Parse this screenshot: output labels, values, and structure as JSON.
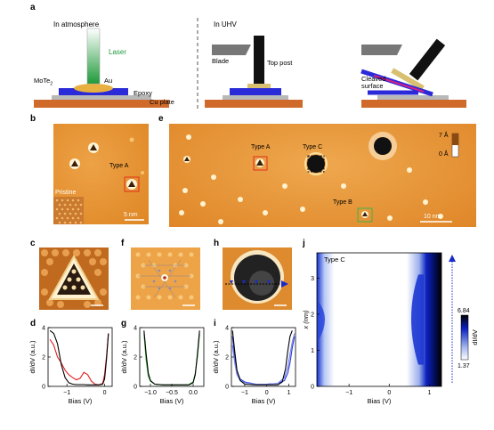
{
  "panel_letters": {
    "a": "a",
    "b": "b",
    "c": "c",
    "d": "d",
    "e": "e",
    "f": "f",
    "g": "g",
    "h": "h",
    "i": "i",
    "j": "j"
  },
  "schematic": {
    "step1_title": "In atmosphere",
    "step2_title": "In UHV",
    "laser": "Laser",
    "au": "Au",
    "mote2": "MoTe",
    "mote2_sub": "2",
    "epoxy": "Epoxy",
    "cu_plate": "Cu plate",
    "blade": "Blade",
    "top_post": "Top post",
    "cleaved_surface_1": "Cleaved",
    "cleaved_surface_2": "surface"
  },
  "panel_b": {
    "type_label": "Type A",
    "inset_label": "Pristine",
    "scalebar": "5 nm"
  },
  "panel_e": {
    "type_a": "Type A",
    "type_b": "Type B",
    "type_c": "Type C",
    "scalebar": "10 nm",
    "colorbar_max": "7 Å",
    "colorbar_min": "0 Å"
  },
  "colors": {
    "stm_orange": "#e8922a",
    "red_box": "#e0301e",
    "green_box": "#3cb44b",
    "spectrum_red": "#e02020",
    "spectrum_green": "#22aa22",
    "spectrum_blue": "#2a3ad8",
    "dark_blue": "#1a2a9a"
  },
  "chart_data": [
    {
      "id": "d",
      "type": "line",
      "xlabel": "Bias (V)",
      "ylabel": "dI/dV (a.u.)",
      "xlim": [
        -1.5,
        0.2
      ],
      "ylim": [
        0,
        4
      ],
      "xticks": [
        -1,
        0
      ],
      "yticks": [
        0,
        2,
        4
      ],
      "series": [
        {
          "color": "#e02020",
          "x": [
            -1.45,
            -1.35,
            -1.25,
            -1.15,
            -1.05,
            -0.95,
            -0.85,
            -0.75,
            -0.65,
            -0.55,
            -0.45,
            -0.35,
            -0.25,
            -0.15,
            -0.05,
            0.0,
            0.05,
            0.1
          ],
          "y": [
            3.2,
            2.8,
            2.0,
            1.6,
            1.1,
            0.8,
            0.6,
            0.45,
            0.55,
            0.95,
            0.8,
            0.35,
            0.15,
            0.1,
            0.2,
            0.8,
            2.0,
            3.6
          ]
        },
        {
          "color": "#000000",
          "x": [
            -1.45,
            -1.35,
            -1.25,
            -1.15,
            -1.05,
            -0.95,
            -0.85,
            -0.75,
            -0.65,
            -0.55,
            -0.45,
            -0.35,
            -0.25,
            -0.15,
            -0.05,
            0.0,
            0.05,
            0.1
          ],
          "y": [
            3.8,
            3.6,
            2.9,
            1.5,
            0.6,
            0.25,
            0.15,
            0.12,
            0.12,
            0.12,
            0.1,
            0.1,
            0.1,
            0.1,
            0.15,
            0.5,
            1.8,
            3.6
          ]
        }
      ]
    },
    {
      "id": "g",
      "type": "line",
      "xlabel": "Bias (V)",
      "ylabel": "dI/dV (a.u.)",
      "xlim": [
        -1.25,
        0.25
      ],
      "ylim": [
        0,
        4
      ],
      "xticks": [
        -1.0,
        -0.5,
        0.0
      ],
      "xticklabels": [
        "−1.0",
        "−0.5",
        "0.0"
      ],
      "yticks": [
        0,
        2,
        4
      ],
      "series": [
        {
          "color": "#22aa22",
          "x": [
            -1.15,
            -1.1,
            -1.05,
            -1.0,
            -0.9,
            -0.7,
            -0.5,
            -0.3,
            -0.1,
            0.0,
            0.05,
            0.1,
            0.15
          ],
          "y": [
            3.6,
            1.8,
            0.7,
            0.35,
            0.15,
            0.1,
            0.1,
            0.1,
            0.12,
            0.3,
            0.9,
            2.0,
            3.6
          ]
        },
        {
          "color": "#000000",
          "x": [
            -1.15,
            -1.1,
            -1.05,
            -1.0,
            -0.9,
            -0.7,
            -0.5,
            -0.3,
            -0.1,
            0.0,
            0.05,
            0.1,
            0.15
          ],
          "y": [
            3.8,
            2.2,
            0.9,
            0.4,
            0.15,
            0.1,
            0.1,
            0.1,
            0.1,
            0.25,
            0.8,
            2.2,
            3.8
          ]
        }
      ]
    },
    {
      "id": "i",
      "type": "line",
      "xlabel": "Bias (V)",
      "ylabel": "dI/dV (a.u.)",
      "xlim": [
        -1.6,
        1.3
      ],
      "ylim": [
        0,
        4
      ],
      "xticks": [
        -1,
        0,
        1
      ],
      "yticks": [
        0,
        2,
        4
      ],
      "series": [
        {
          "color": "#2a3ad8",
          "x": [
            -1.55,
            -1.45,
            -1.35,
            -1.2,
            -1.0,
            -0.5,
            0.0,
            0.5,
            0.8,
            0.95,
            1.05,
            1.15,
            1.25
          ],
          "y": [
            3.4,
            2.0,
            1.0,
            0.5,
            0.3,
            0.15,
            0.15,
            0.2,
            0.4,
            0.9,
            1.6,
            2.6,
            3.4
          ]
        },
        {
          "color": "#7080e8",
          "x": [
            -1.55,
            -1.45,
            -1.35,
            -1.2,
            -1.0,
            -0.5,
            0.0,
            0.5,
            0.8,
            0.95,
            1.05,
            1.15,
            1.25
          ],
          "y": [
            2.8,
            1.6,
            0.8,
            0.4,
            0.25,
            0.15,
            0.15,
            0.2,
            0.6,
            1.3,
            2.2,
            3.0,
            3.6
          ]
        },
        {
          "color": "#000000",
          "x": [
            -1.55,
            -1.45,
            -1.35,
            -1.2,
            -1.0,
            -0.5,
            0.0,
            0.5,
            0.7,
            0.85,
            0.95,
            1.05,
            1.15
          ],
          "y": [
            3.8,
            2.4,
            1.1,
            0.4,
            0.15,
            0.1,
            0.1,
            0.1,
            0.3,
            1.2,
            2.4,
            3.4,
            3.8
          ]
        }
      ]
    },
    {
      "id": "j",
      "type": "heatmap",
      "title": "Type C",
      "xlabel": "Bias (V)",
      "ylabel": "x (nm)",
      "xlim": [
        -1.8,
        1.3
      ],
      "ylim": [
        0,
        3.7
      ],
      "xticks": [
        -1,
        0,
        1
      ],
      "yticks": [
        0,
        1,
        2,
        3
      ],
      "colorbar": {
        "max": "6.84",
        "min": "1.37",
        "label": "dI/dV"
      }
    }
  ]
}
